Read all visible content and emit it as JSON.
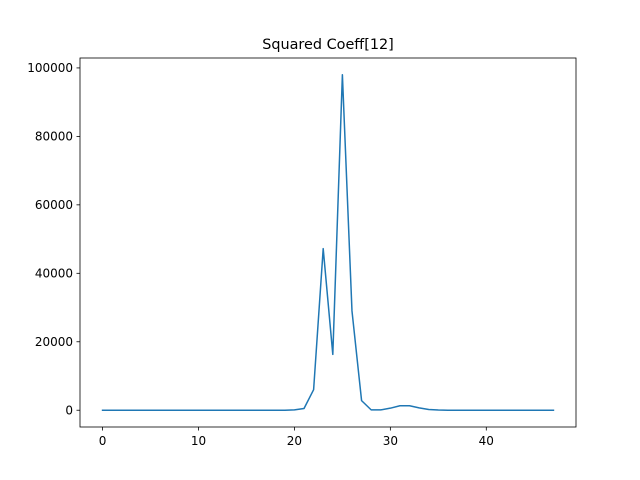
{
  "chart_data": {
    "type": "line",
    "title": "Squared Coeff[12]",
    "xlabel": "",
    "ylabel": "",
    "xlim": [
      -2.35,
      49.35
    ],
    "ylim": [
      -4900,
      102900
    ],
    "xticks": [
      0,
      10,
      20,
      30,
      40
    ],
    "yticks": [
      0,
      20000,
      40000,
      60000,
      80000,
      100000
    ],
    "xtick_labels": [
      "0",
      "10",
      "20",
      "30",
      "40"
    ],
    "ytick_labels": [
      "0",
      "20000",
      "40000",
      "60000",
      "80000",
      "100000"
    ],
    "grid": false,
    "legend": "none",
    "series": [
      {
        "color": "#1f77b4",
        "x": [
          0,
          1,
          2,
          3,
          4,
          5,
          6,
          7,
          8,
          9,
          10,
          11,
          12,
          13,
          14,
          15,
          16,
          17,
          18,
          19,
          20,
          21,
          22,
          23,
          24,
          25,
          26,
          27,
          28,
          29,
          30,
          31,
          32,
          33,
          34,
          35,
          36,
          37,
          38,
          39,
          40,
          41,
          42,
          43,
          44,
          45,
          46,
          47
        ],
        "values": [
          0,
          0,
          0,
          0,
          0,
          0,
          0,
          0,
          0,
          0,
          0,
          0,
          0,
          0,
          0,
          0,
          0,
          0,
          0,
          0,
          100,
          500,
          6000,
          47200,
          16300,
          98000,
          29000,
          2800,
          100,
          100,
          600,
          1300,
          1300,
          700,
          200,
          50,
          0,
          0,
          0,
          0,
          0,
          0,
          0,
          0,
          0,
          0,
          0,
          0
        ]
      }
    ]
  }
}
